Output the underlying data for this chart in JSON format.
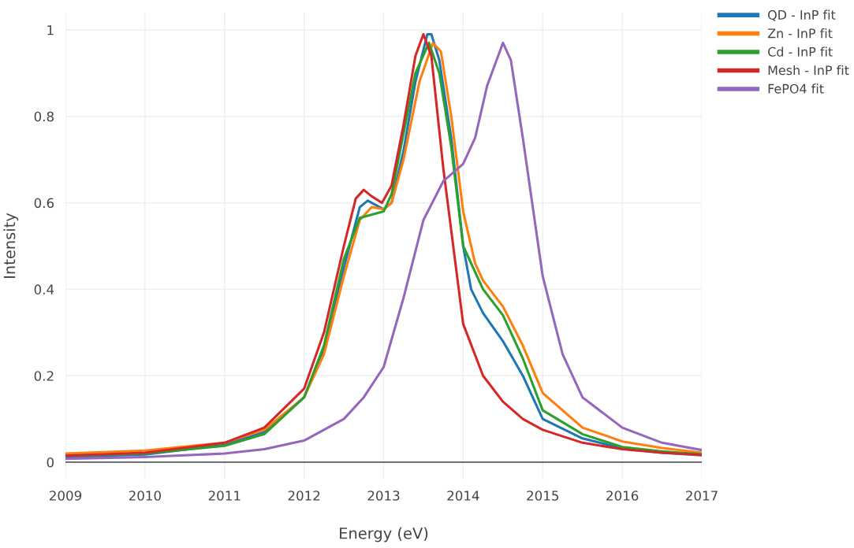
{
  "chart_data": {
    "type": "line",
    "xlabel": "Energy (eV)",
    "ylabel": "Intensity",
    "xlim": [
      2009,
      2017
    ],
    "ylim": [
      -0.04,
      1.04
    ],
    "xticks": [
      2009,
      2010,
      2011,
      2012,
      2013,
      2014,
      2015,
      2016,
      2017
    ],
    "yticks": [
      0,
      0.2,
      0.4,
      0.6,
      0.8,
      1
    ],
    "grid": true,
    "legend": "top right",
    "marker": "none",
    "line_style": "solid",
    "series": [
      {
        "name": "QD - InP fit",
        "color": "#1f77b4",
        "x": [
          2009,
          2010,
          2011,
          2011.5,
          2012,
          2012.25,
          2012.5,
          2012.7,
          2012.8,
          2013,
          2013.1,
          2013.25,
          2013.4,
          2013.55,
          2013.6,
          2013.7,
          2013.85,
          2014,
          2014.1,
          2014.25,
          2014.5,
          2014.75,
          2015,
          2015.5,
          2016,
          2016.5,
          2017
        ],
        "values": [
          0.012,
          0.018,
          0.04,
          0.07,
          0.15,
          0.26,
          0.45,
          0.59,
          0.605,
          0.585,
          0.6,
          0.72,
          0.88,
          0.99,
          0.99,
          0.93,
          0.75,
          0.5,
          0.4,
          0.345,
          0.28,
          0.2,
          0.1,
          0.055,
          0.032,
          0.022,
          0.016
        ]
      },
      {
        "name": "Zn - InP fit",
        "color": "#ff7f0e",
        "x": [
          2009,
          2010,
          2011,
          2011.5,
          2012,
          2012.25,
          2012.5,
          2012.7,
          2012.85,
          2013,
          2013.1,
          2013.25,
          2013.45,
          2013.62,
          2013.72,
          2013.85,
          2014,
          2014.15,
          2014.25,
          2014.5,
          2014.75,
          2015,
          2015.5,
          2016,
          2016.5,
          2017
        ],
        "values": [
          0.02,
          0.027,
          0.045,
          0.075,
          0.15,
          0.25,
          0.43,
          0.56,
          0.59,
          0.585,
          0.6,
          0.7,
          0.88,
          0.97,
          0.95,
          0.8,
          0.58,
          0.46,
          0.42,
          0.36,
          0.27,
          0.16,
          0.08,
          0.048,
          0.033,
          0.022
        ]
      },
      {
        "name": "Cd - InP fit",
        "color": "#2ca02c",
        "x": [
          2009,
          2010,
          2011,
          2011.5,
          2012,
          2012.25,
          2012.5,
          2012.7,
          2012.9,
          2013,
          2013.1,
          2013.25,
          2013.4,
          2013.57,
          2013.7,
          2013.85,
          2014,
          2014.25,
          2014.5,
          2014.75,
          2015,
          2015.5,
          2016,
          2016.5,
          2017
        ],
        "values": [
          0.015,
          0.02,
          0.038,
          0.065,
          0.15,
          0.27,
          0.47,
          0.565,
          0.575,
          0.58,
          0.62,
          0.76,
          0.9,
          0.97,
          0.9,
          0.73,
          0.5,
          0.4,
          0.34,
          0.24,
          0.12,
          0.065,
          0.035,
          0.025,
          0.018
        ]
      },
      {
        "name": "Mesh - InP fit",
        "color": "#d62728",
        "x": [
          2009,
          2010,
          2011,
          2011.5,
          2012,
          2012.25,
          2012.5,
          2012.65,
          2012.75,
          2012.85,
          2012.98,
          2013.1,
          2013.25,
          2013.4,
          2013.5,
          2013.6,
          2013.75,
          2014,
          2014.25,
          2014.5,
          2014.75,
          2015,
          2015.5,
          2016,
          2016.5,
          2017
        ],
        "values": [
          0.015,
          0.022,
          0.045,
          0.08,
          0.17,
          0.3,
          0.5,
          0.61,
          0.63,
          0.615,
          0.6,
          0.64,
          0.78,
          0.94,
          0.99,
          0.94,
          0.68,
          0.32,
          0.2,
          0.14,
          0.1,
          0.075,
          0.045,
          0.03,
          0.022,
          0.017
        ]
      },
      {
        "name": "FePO4 fit",
        "color": "#9467bd",
        "x": [
          2009,
          2010,
          2011,
          2011.5,
          2012,
          2012.5,
          2012.75,
          2013,
          2013.25,
          2013.5,
          2013.75,
          2014,
          2014.15,
          2014.3,
          2014.5,
          2014.6,
          2014.75,
          2015,
          2015.25,
          2015.5,
          2016,
          2016.5,
          2017
        ],
        "values": [
          0.008,
          0.012,
          0.02,
          0.03,
          0.05,
          0.1,
          0.15,
          0.22,
          0.38,
          0.56,
          0.65,
          0.69,
          0.75,
          0.87,
          0.97,
          0.93,
          0.75,
          0.43,
          0.25,
          0.15,
          0.08,
          0.045,
          0.028
        ]
      }
    ]
  }
}
